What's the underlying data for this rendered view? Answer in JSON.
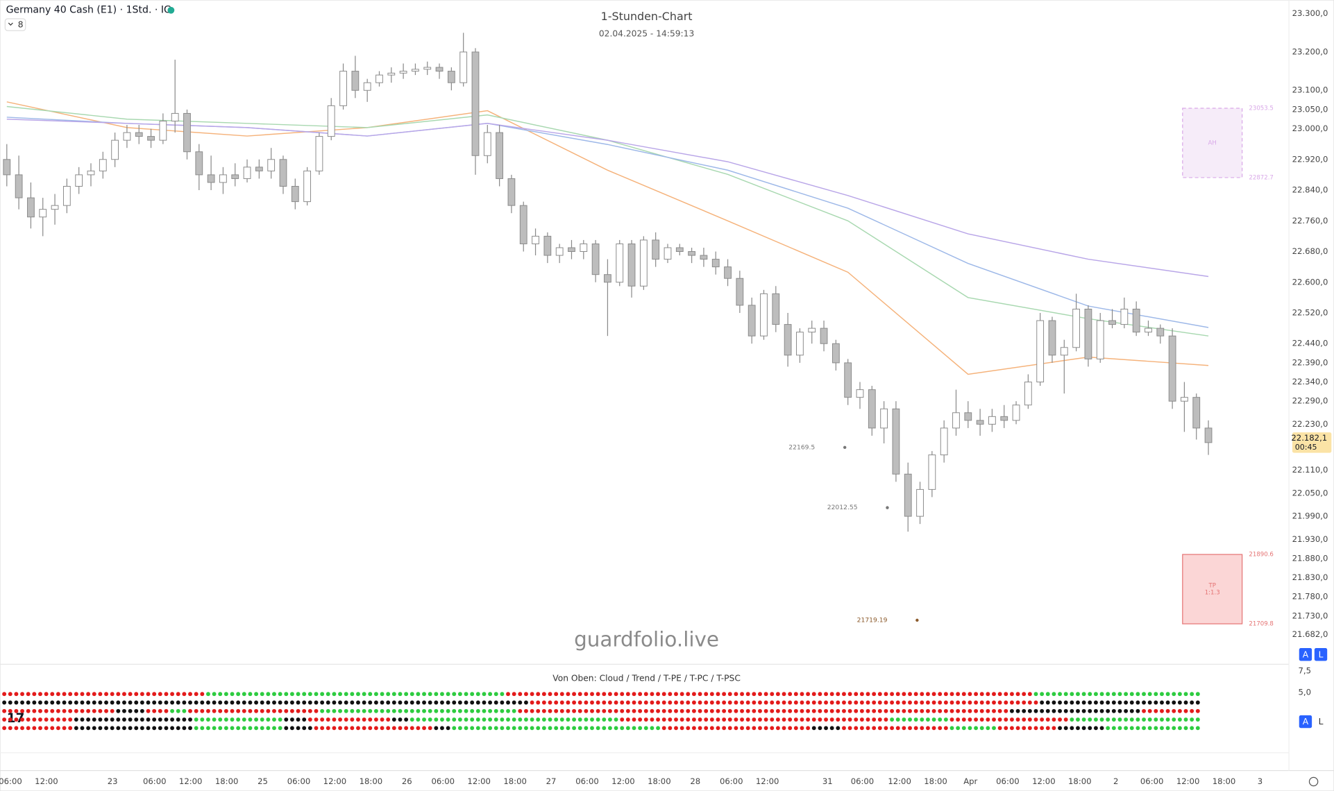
{
  "header": {
    "symbol": "Germany 40 Cash (E1) · 1Std. · IG",
    "indicators": "8"
  },
  "controls": {
    "auto": "A",
    "log": "L"
  },
  "watermark": "guardfolio.live",
  "chart_data": [
    {
      "type": "candlestick",
      "title": "1-Stunden-Chart",
      "subtitle": "02.04.2025 - 14:59:13",
      "up_color": "#ffffff",
      "down_color": "#bdbdbd",
      "edge_color": "#8a8a8a",
      "ylim": [
        21682,
        23300
      ],
      "yticks": [
        {
          "value": 23300,
          "label": "23.300,0"
        },
        {
          "value": 23200,
          "label": "23.200,0"
        },
        {
          "value": 23100,
          "label": "23.100,0"
        },
        {
          "value": 23050,
          "label": "23.050,0"
        },
        {
          "value": 23000,
          "label": "23.000,0"
        },
        {
          "value": 22920,
          "label": "22.920,0"
        },
        {
          "value": 22840,
          "label": "22.840,0"
        },
        {
          "value": 22760,
          "label": "22.760,0"
        },
        {
          "value": 22680,
          "label": "22.680,0"
        },
        {
          "value": 22600,
          "label": "22.600,0"
        },
        {
          "value": 22520,
          "label": "22.520,0"
        },
        {
          "value": 22440,
          "label": "22.440,0"
        },
        {
          "value": 22390,
          "label": "22.390,0"
        },
        {
          "value": 22340,
          "label": "22.340,0"
        },
        {
          "value": 22290,
          "label": "22.290,0"
        },
        {
          "value": 22230,
          "label": "22.230,0"
        },
        {
          "value": 22110,
          "label": "22.110,0"
        },
        {
          "value": 22050,
          "label": "22.050,0"
        },
        {
          "value": 21990,
          "label": "21.990,0"
        },
        {
          "value": 21930,
          "label": "21.930,0"
        },
        {
          "value": 21880,
          "label": "21.880,0"
        },
        {
          "value": 21830,
          "label": "21.830,0"
        },
        {
          "value": 21780,
          "label": "21.780,0"
        },
        {
          "value": 21730,
          "label": "21.730,0"
        },
        {
          "value": 21682,
          "label": "21.682,0"
        }
      ],
      "xlim": [
        0,
        106.7
      ],
      "xticks": [
        {
          "value": 0.3,
          "label": "06:00"
        },
        {
          "value": 3.3,
          "label": "12:00"
        },
        {
          "value": 8.8,
          "label": "23"
        },
        {
          "value": 12.3,
          "label": "06:00"
        },
        {
          "value": 15.3,
          "label": "12:00"
        },
        {
          "value": 18.3,
          "label": "18:00"
        },
        {
          "value": 21.3,
          "label": "25"
        },
        {
          "value": 24.3,
          "label": "06:00"
        },
        {
          "value": 27.3,
          "label": "12:00"
        },
        {
          "value": 30.3,
          "label": "18:00"
        },
        {
          "value": 33.3,
          "label": "26"
        },
        {
          "value": 36.3,
          "label": "06:00"
        },
        {
          "value": 39.3,
          "label": "12:00"
        },
        {
          "value": 42.3,
          "label": "18:00"
        },
        {
          "value": 45.3,
          "label": "27"
        },
        {
          "value": 48.3,
          "label": "06:00"
        },
        {
          "value": 51.3,
          "label": "12:00"
        },
        {
          "value": 54.3,
          "label": "18:00"
        },
        {
          "value": 57.3,
          "label": "28"
        },
        {
          "value": 60.3,
          "label": "06:00"
        },
        {
          "value": 63.3,
          "label": "12:00"
        },
        {
          "value": 68.3,
          "label": "31"
        },
        {
          "value": 71.2,
          "label": "06:00"
        },
        {
          "value": 74.3,
          "label": "12:00"
        },
        {
          "value": 77.3,
          "label": "18:00"
        },
        {
          "value": 80.2,
          "label": "Apr"
        },
        {
          "value": 83.3,
          "label": "06:00"
        },
        {
          "value": 86.3,
          "label": "12:00"
        },
        {
          "value": 89.3,
          "label": "18:00"
        },
        {
          "value": 92.3,
          "label": "2"
        },
        {
          "value": 95.3,
          "label": "06:00"
        },
        {
          "value": 98.3,
          "label": "12:00"
        },
        {
          "value": 101.3,
          "label": "18:00"
        },
        {
          "value": 104.3,
          "label": "3"
        }
      ],
      "ohlc": [
        [
          22920,
          22960,
          22850,
          22880
        ],
        [
          22880,
          22930,
          22790,
          22820
        ],
        [
          22820,
          22860,
          22740,
          22770
        ],
        [
          22770,
          22820,
          22720,
          22790
        ],
        [
          22790,
          22830,
          22750,
          22800
        ],
        [
          22800,
          22870,
          22780,
          22850
        ],
        [
          22850,
          22900,
          22830,
          22880
        ],
        [
          22880,
          22910,
          22850,
          22890
        ],
        [
          22890,
          22940,
          22870,
          22920
        ],
        [
          22920,
          22990,
          22900,
          22970
        ],
        [
          22970,
          23010,
          22950,
          22990
        ],
        [
          22990,
          23010,
          22960,
          22980
        ],
        [
          22980,
          23000,
          22950,
          22970
        ],
        [
          22970,
          23040,
          22960,
          23020
        ],
        [
          23020,
          23180,
          22990,
          23040
        ],
        [
          23040,
          23050,
          22920,
          22940
        ],
        [
          22940,
          22960,
          22840,
          22880
        ],
        [
          22880,
          22930,
          22840,
          22860
        ],
        [
          22860,
          22900,
          22830,
          22880
        ],
        [
          22880,
          22910,
          22850,
          22870
        ],
        [
          22870,
          22920,
          22860,
          22900
        ],
        [
          22900,
          22920,
          22870,
          22890
        ],
        [
          22890,
          22950,
          22870,
          22920
        ],
        [
          22920,
          22930,
          22830,
          22850
        ],
        [
          22850,
          22870,
          22790,
          22810
        ],
        [
          22810,
          22900,
          22800,
          22890
        ],
        [
          22890,
          22990,
          22880,
          22980
        ],
        [
          22980,
          23080,
          22970,
          23060
        ],
        [
          23060,
          23170,
          23050,
          23150
        ],
        [
          23150,
          23190,
          23080,
          23100
        ],
        [
          23100,
          23130,
          23070,
          23120
        ],
        [
          23120,
          23150,
          23110,
          23140
        ],
        [
          23140,
          23160,
          23120,
          23145
        ],
        [
          23145,
          23170,
          23130,
          23150
        ],
        [
          23150,
          23170,
          23140,
          23155
        ],
        [
          23155,
          23175,
          23140,
          23160
        ],
        [
          23160,
          23170,
          23130,
          23150
        ],
        [
          23150,
          23160,
          23100,
          23120
        ],
        [
          23120,
          23250,
          23110,
          23200
        ],
        [
          23200,
          23210,
          22880,
          22930
        ],
        [
          22930,
          23010,
          22910,
          22990
        ],
        [
          22990,
          23010,
          22850,
          22870
        ],
        [
          22870,
          22880,
          22780,
          22800
        ],
        [
          22800,
          22810,
          22680,
          22700
        ],
        [
          22700,
          22740,
          22670,
          22720
        ],
        [
          22720,
          22730,
          22650,
          22670
        ],
        [
          22670,
          22700,
          22650,
          22690
        ],
        [
          22690,
          22710,
          22660,
          22680
        ],
        [
          22680,
          22710,
          22660,
          22700
        ],
        [
          22700,
          22710,
          22600,
          22620
        ],
        [
          22620,
          22660,
          22460,
          22600
        ],
        [
          22600,
          22710,
          22590,
          22700
        ],
        [
          22700,
          22710,
          22560,
          22590
        ],
        [
          22590,
          22720,
          22580,
          22710
        ],
        [
          22710,
          22730,
          22640,
          22660
        ],
        [
          22660,
          22700,
          22650,
          22690
        ],
        [
          22690,
          22700,
          22670,
          22680
        ],
        [
          22680,
          22690,
          22650,
          22670
        ],
        [
          22670,
          22690,
          22640,
          22660
        ],
        [
          22660,
          22680,
          22620,
          22640
        ],
        [
          22640,
          22660,
          22590,
          22610
        ],
        [
          22610,
          22630,
          22520,
          22540
        ],
        [
          22540,
          22560,
          22440,
          22460
        ],
        [
          22460,
          22580,
          22450,
          22570
        ],
        [
          22570,
          22590,
          22470,
          22490
        ],
        [
          22490,
          22520,
          22380,
          22410
        ],
        [
          22410,
          22480,
          22390,
          22470
        ],
        [
          22470,
          22500,
          22440,
          22480
        ],
        [
          22480,
          22500,
          22420,
          22440
        ],
        [
          22440,
          22450,
          22370,
          22390
        ],
        [
          22390,
          22400,
          22280,
          22300
        ],
        [
          22300,
          22340,
          22270,
          22320
        ],
        [
          22320,
          22330,
          22200,
          22220
        ],
        [
          22220,
          22290,
          22180,
          22270
        ],
        [
          22270,
          22290,
          22080,
          22100
        ],
        [
          22100,
          22130,
          21950,
          21990
        ],
        [
          21990,
          22080,
          21970,
          22060
        ],
        [
          22060,
          22160,
          22040,
          22150
        ],
        [
          22150,
          22240,
          22130,
          22220
        ],
        [
          22220,
          22320,
          22200,
          22260
        ],
        [
          22260,
          22290,
          22220,
          22240
        ],
        [
          22240,
          22270,
          22200,
          22230
        ],
        [
          22230,
          22270,
          22210,
          22250
        ],
        [
          22250,
          22280,
          22220,
          22240
        ],
        [
          22240,
          22290,
          22230,
          22280
        ],
        [
          22280,
          22360,
          22270,
          22340
        ],
        [
          22340,
          22520,
          22330,
          22500
        ],
        [
          22500,
          22510,
          22390,
          22410
        ],
        [
          22410,
          22450,
          22310,
          22430
        ],
        [
          22430,
          22570,
          22420,
          22530
        ],
        [
          22530,
          22540,
          22380,
          22400
        ],
        [
          22400,
          22520,
          22390,
          22500
        ],
        [
          22500,
          22530,
          22480,
          22490
        ],
        [
          22490,
          22560,
          22480,
          22530
        ],
        [
          22530,
          22550,
          22460,
          22470
        ],
        [
          22470,
          22500,
          22460,
          22480
        ],
        [
          22480,
          22490,
          22440,
          22460
        ],
        [
          22460,
          22480,
          22270,
          22290
        ],
        [
          22290,
          22340,
          22210,
          22300
        ],
        [
          22300,
          22310,
          22190,
          22220
        ],
        [
          22220,
          22240,
          22150,
          22182.1
        ]
      ],
      "lines": [
        {
          "color": "#f5b27a",
          "x": [
            0,
            10,
            20,
            30,
            40,
            50,
            60,
            70,
            80,
            90,
            100
          ],
          "values": [
            23070,
            23003,
            22981,
            23003,
            23047,
            22892,
            22760,
            22626,
            22360,
            22405,
            22383
          ]
        },
        {
          "color": "#a8d8b0",
          "x": [
            0,
            10,
            20,
            30,
            40,
            50,
            60,
            70,
            80,
            90,
            100
          ],
          "values": [
            23058,
            23025,
            23014,
            23003,
            23036,
            22970,
            22881,
            22760,
            22560,
            22505,
            22460
          ]
        },
        {
          "color": "#9db8e8",
          "x": [
            0,
            10,
            20,
            30,
            40,
            50,
            60,
            70,
            80,
            90,
            100
          ],
          "values": [
            23030,
            23014,
            23003,
            22981,
            23014,
            22959,
            22892,
            22793,
            22649,
            22538,
            22482
          ]
        },
        {
          "color": "#b9a6e8",
          "x": [
            0,
            10,
            20,
            30,
            40,
            50,
            60,
            70,
            80,
            90,
            100
          ],
          "values": [
            23025,
            23014,
            23003,
            22981,
            23014,
            22970,
            22914,
            22826,
            22726,
            22660,
            22615
          ]
        }
      ],
      "zones": [
        {
          "label": "AH",
          "top": 23053.5,
          "bottom": 22872.7,
          "color": "#d9a8e8",
          "fill": "#f6ecf9"
        },
        {
          "label": "TP",
          "sublabel": "1:1.3",
          "top": 21890.6,
          "bottom": 21709.8,
          "color": "#e57373",
          "fill": "#fbd6d6"
        }
      ],
      "annotations": [
        {
          "value": 22169.5,
          "color": "#777777"
        },
        {
          "value": 22012.55,
          "color": "#777777"
        },
        {
          "value": 21719.19,
          "color": "#8b5a2b"
        }
      ],
      "last_price": {
        "value": 22182.1,
        "label": "22.182,1"
      },
      "countdown": "00:45"
    },
    {
      "type": "dots",
      "title": "Von Oben: Cloud / Trend / T-PE / T-PC / T-PSC",
      "ylim": [
        -2.1,
        8.3
      ],
      "yticks": [
        {
          "value": 7.5,
          "label": "7,5"
        },
        {
          "value": 5,
          "label": "5,0"
        }
      ],
      "palette": {
        "r": "#e31b1b",
        "g": "#2ecc40",
        "k": "#111111"
      },
      "rows": [
        [
          [
            "r",
            34
          ],
          [
            "g",
            50
          ],
          [
            "r",
            88
          ],
          [
            "g",
            28
          ]
        ],
        [
          [
            "k",
            88
          ],
          [
            "r",
            85
          ],
          [
            "k",
            27
          ]
        ],
        [
          [
            "r",
            19
          ],
          [
            "k",
            5
          ],
          [
            "r",
            4
          ],
          [
            "g",
            3
          ],
          [
            "r",
            22
          ],
          [
            "g",
            33
          ],
          [
            "r",
            82
          ],
          [
            "k",
            22
          ],
          [
            "r",
            10
          ]
        ],
        [
          [
            "r",
            12
          ],
          [
            "k",
            20
          ],
          [
            "g",
            15
          ],
          [
            "k",
            4
          ],
          [
            "r",
            14
          ],
          [
            "k",
            3
          ],
          [
            "g",
            35
          ],
          [
            "r",
            45
          ],
          [
            "g",
            10
          ],
          [
            "r",
            20
          ],
          [
            "g",
            22
          ]
        ],
        [
          [
            "r",
            12
          ],
          [
            "k",
            20
          ],
          [
            "g",
            15
          ],
          [
            "k",
            5
          ],
          [
            "r",
            20
          ],
          [
            "k",
            3
          ],
          [
            "g",
            35
          ],
          [
            "r",
            25
          ],
          [
            "k",
            5
          ],
          [
            "r",
            18
          ],
          [
            "g",
            8
          ],
          [
            "r",
            10
          ],
          [
            "k",
            8
          ],
          [
            "g",
            16
          ]
        ]
      ]
    }
  ]
}
